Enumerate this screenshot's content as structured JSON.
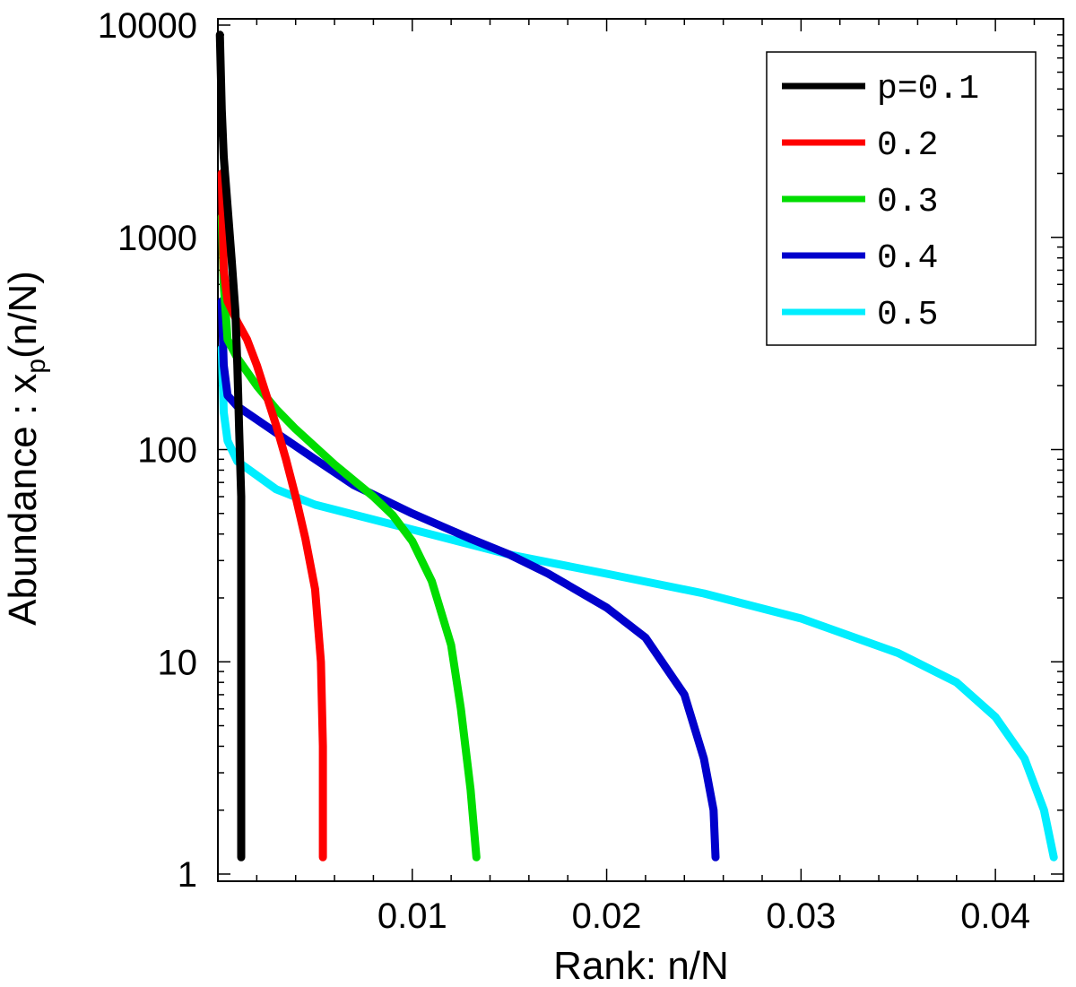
{
  "chart_data": {
    "type": "line",
    "title": "",
    "xlabel": "Rank: n/N",
    "ylabel_prefix": "Abundance : x",
    "ylabel_sub": "p",
    "ylabel_suffix": "(n/N)",
    "xlim": [
      0,
      0.0435
    ],
    "ylim": [
      1,
      10000
    ],
    "yscale": "log",
    "x_ticks": [
      0.01,
      0.02,
      0.03,
      0.04
    ],
    "x_tick_labels": [
      "0.01",
      "0.02",
      "0.03",
      "0.04"
    ],
    "y_ticks": [
      1,
      10,
      100,
      1000,
      10000
    ],
    "y_tick_labels": [
      "1",
      "10",
      "100",
      "1000",
      "10000"
    ],
    "grid": false,
    "legend_position": "top-right",
    "series": [
      {
        "name": "p=0.1",
        "color": "#000000",
        "points": [
          [
            0.0001,
            9000
          ],
          [
            0.0002,
            4000
          ],
          [
            0.0003,
            2400
          ],
          [
            0.0005,
            1400
          ],
          [
            0.0007,
            800
          ],
          [
            0.0009,
            450
          ],
          [
            0.001,
            250
          ],
          [
            0.0011,
            120
          ],
          [
            0.0012,
            60
          ],
          [
            0.0012,
            20
          ],
          [
            0.0012,
            5
          ],
          [
            0.0012,
            1.2
          ]
        ]
      },
      {
        "name": "0.2",
        "color": "#ff0000",
        "points": [
          [
            0.0002,
            2000
          ],
          [
            0.0003,
            700
          ],
          [
            0.0005,
            500
          ],
          [
            0.001,
            400
          ],
          [
            0.0015,
            330
          ],
          [
            0.002,
            250
          ],
          [
            0.0025,
            180
          ],
          [
            0.003,
            130
          ],
          [
            0.0035,
            90
          ],
          [
            0.004,
            60
          ],
          [
            0.0045,
            38
          ],
          [
            0.005,
            22
          ],
          [
            0.0053,
            10
          ],
          [
            0.0054,
            4
          ],
          [
            0.0054,
            2
          ],
          [
            0.0054,
            1.2
          ]
        ]
      },
      {
        "name": "0.3",
        "color": "#00dd00",
        "points": [
          [
            0.0002,
            1250
          ],
          [
            0.0003,
            600
          ],
          [
            0.0005,
            330
          ],
          [
            0.001,
            270
          ],
          [
            0.002,
            200
          ],
          [
            0.003,
            155
          ],
          [
            0.004,
            125
          ],
          [
            0.006,
            85
          ],
          [
            0.008,
            60
          ],
          [
            0.009,
            49
          ],
          [
            0.01,
            37
          ],
          [
            0.011,
            24
          ],
          [
            0.012,
            12
          ],
          [
            0.0125,
            6
          ],
          [
            0.013,
            2.5
          ],
          [
            0.0133,
            1.2
          ]
        ]
      },
      {
        "name": "0.4",
        "color": "#0000cc",
        "points": [
          [
            0.0002,
            500
          ],
          [
            0.0003,
            250
          ],
          [
            0.0005,
            180
          ],
          [
            0.001,
            160
          ],
          [
            0.003,
            120
          ],
          [
            0.005,
            90
          ],
          [
            0.007,
            68
          ],
          [
            0.01,
            50
          ],
          [
            0.013,
            38
          ],
          [
            0.015,
            32
          ],
          [
            0.017,
            26
          ],
          [
            0.02,
            18
          ],
          [
            0.022,
            13
          ],
          [
            0.024,
            7
          ],
          [
            0.025,
            3.5
          ],
          [
            0.0255,
            2
          ],
          [
            0.0256,
            1.2
          ]
        ]
      },
      {
        "name": "0.5",
        "color": "#00eeff",
        "points": [
          [
            0.0002,
            300
          ],
          [
            0.0003,
            150
          ],
          [
            0.0005,
            110
          ],
          [
            0.001,
            88
          ],
          [
            0.003,
            65
          ],
          [
            0.005,
            55
          ],
          [
            0.01,
            42
          ],
          [
            0.015,
            32
          ],
          [
            0.02,
            26
          ],
          [
            0.025,
            21
          ],
          [
            0.03,
            16
          ],
          [
            0.035,
            11
          ],
          [
            0.038,
            8
          ],
          [
            0.04,
            5.5
          ],
          [
            0.0415,
            3.5
          ],
          [
            0.0425,
            2
          ],
          [
            0.043,
            1.2
          ]
        ]
      }
    ]
  }
}
